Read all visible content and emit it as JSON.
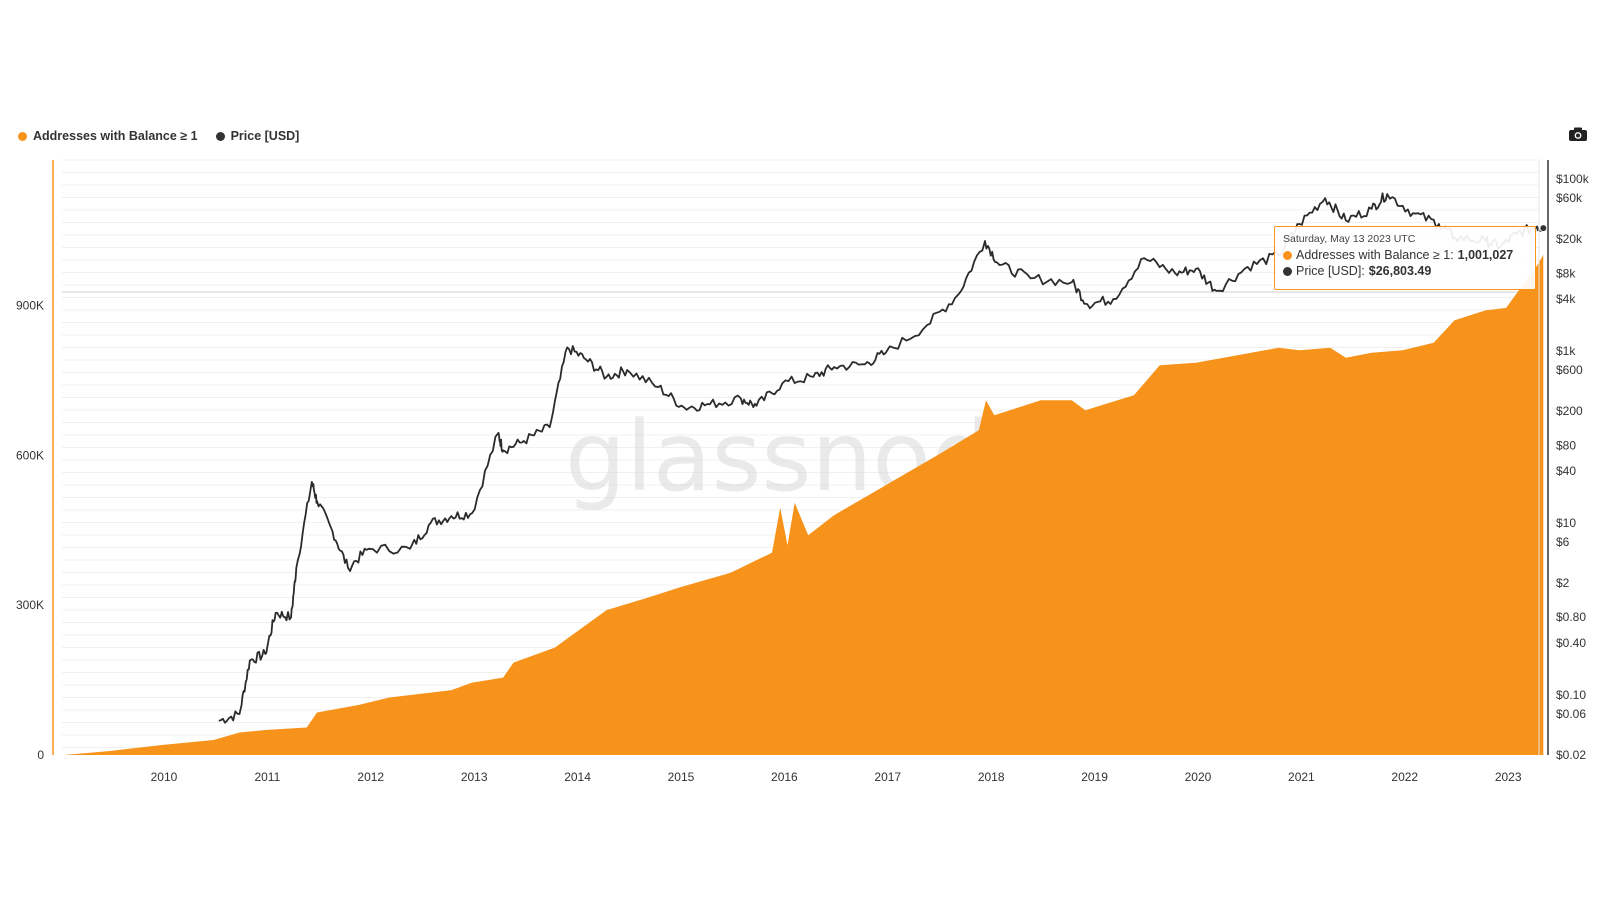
{
  "legend": {
    "items": [
      {
        "label": "Addresses with Balance ≥ 1",
        "color": "#f7931a"
      },
      {
        "label": "Price [USD]",
        "color": "#333333"
      }
    ]
  },
  "toolbar": {
    "camera_icon": "camera-icon"
  },
  "watermark": "glassnode",
  "tooltip": {
    "date": "Saturday, May 13 2023 UTC",
    "addresses_label": "Addresses with Balance ≥ 1:",
    "addresses_value": "1,001,027",
    "price_label": "Price [USD]:",
    "price_value": "$26,803.49"
  },
  "chart_data": {
    "type": "area",
    "x_ticks": [
      "2010",
      "2011",
      "2012",
      "2013",
      "2014",
      "2015",
      "2016",
      "2017",
      "2018",
      "2019",
      "2020",
      "2021",
      "2022",
      "2023"
    ],
    "y_left_ticks": [
      "0",
      "300K",
      "600K",
      "900K"
    ],
    "y_right_ticks": [
      "$0.02",
      "$0.06",
      "$0.10",
      "$0.40",
      "$0.80",
      "$2",
      "$6",
      "$10",
      "$40",
      "$80",
      "$200",
      "$600",
      "$1k",
      "$4k",
      "$8k",
      "$20k",
      "$60k",
      "$100k"
    ],
    "series": [
      {
        "name": "Addresses with Balance ≥ 1",
        "axis": "left",
        "color": "#f7931a",
        "points": [
          [
            2009.05,
            0
          ],
          [
            2009.5,
            8000
          ],
          [
            2010.0,
            20000
          ],
          [
            2010.5,
            30000
          ],
          [
            2010.75,
            45000
          ],
          [
            2011.0,
            50000
          ],
          [
            2011.4,
            55000
          ],
          [
            2011.5,
            85000
          ],
          [
            2011.9,
            100000
          ],
          [
            2012.2,
            115000
          ],
          [
            2012.6,
            125000
          ],
          [
            2012.8,
            130000
          ],
          [
            2013.0,
            145000
          ],
          [
            2013.3,
            155000
          ],
          [
            2013.4,
            185000
          ],
          [
            2013.8,
            215000
          ],
          [
            2014.0,
            245000
          ],
          [
            2014.3,
            290000
          ],
          [
            2014.7,
            315000
          ],
          [
            2015.0,
            335000
          ],
          [
            2015.5,
            365000
          ],
          [
            2015.9,
            405000
          ],
          [
            2015.98,
            495000
          ],
          [
            2016.05,
            420000
          ],
          [
            2016.12,
            505000
          ],
          [
            2016.25,
            440000
          ],
          [
            2016.5,
            480000
          ],
          [
            2017.0,
            540000
          ],
          [
            2017.5,
            600000
          ],
          [
            2017.9,
            650000
          ],
          [
            2017.97,
            710000
          ],
          [
            2018.05,
            680000
          ],
          [
            2018.5,
            710000
          ],
          [
            2018.8,
            710000
          ],
          [
            2018.93,
            690000
          ],
          [
            2019.4,
            720000
          ],
          [
            2019.65,
            780000
          ],
          [
            2020.0,
            785000
          ],
          [
            2020.4,
            800000
          ],
          [
            2020.8,
            815000
          ],
          [
            2021.0,
            810000
          ],
          [
            2021.3,
            815000
          ],
          [
            2021.45,
            795000
          ],
          [
            2021.7,
            805000
          ],
          [
            2022.0,
            810000
          ],
          [
            2022.3,
            825000
          ],
          [
            2022.5,
            870000
          ],
          [
            2022.8,
            890000
          ],
          [
            2023.0,
            895000
          ],
          [
            2023.3,
            980000
          ],
          [
            2023.36,
            1001027
          ]
        ]
      },
      {
        "name": "Price [USD]",
        "axis": "right",
        "color": "#333333",
        "points": [
          [
            2010.55,
            0.05
          ],
          [
            2010.75,
            0.06
          ],
          [
            2010.85,
            0.25
          ],
          [
            2011.0,
            0.3
          ],
          [
            2011.1,
            0.9
          ],
          [
            2011.25,
            0.8
          ],
          [
            2011.3,
            3
          ],
          [
            2011.45,
            30
          ],
          [
            2011.5,
            18
          ],
          [
            2011.65,
            8
          ],
          [
            2011.8,
            3
          ],
          [
            2012.0,
            5
          ],
          [
            2012.4,
            5
          ],
          [
            2012.6,
            10
          ],
          [
            2012.8,
            12
          ],
          [
            2013.0,
            13
          ],
          [
            2013.25,
            110
          ],
          [
            2013.3,
            70
          ],
          [
            2013.5,
            90
          ],
          [
            2013.75,
            130
          ],
          [
            2013.92,
            1100
          ],
          [
            2014.1,
            800
          ],
          [
            2014.3,
            500
          ],
          [
            2014.5,
            600
          ],
          [
            2014.8,
            380
          ],
          [
            2015.05,
            220
          ],
          [
            2015.3,
            240
          ],
          [
            2015.6,
            280
          ],
          [
            2015.75,
            230
          ],
          [
            2016.0,
            420
          ],
          [
            2016.3,
            500
          ],
          [
            2016.5,
            650
          ],
          [
            2016.8,
            700
          ],
          [
            2017.0,
            950
          ],
          [
            2017.4,
            2000
          ],
          [
            2017.7,
            4500
          ],
          [
            2017.96,
            19000
          ],
          [
            2018.1,
            10000
          ],
          [
            2018.4,
            7000
          ],
          [
            2018.8,
            6300
          ],
          [
            2018.95,
            3500
          ],
          [
            2019.2,
            4000
          ],
          [
            2019.5,
            12000
          ],
          [
            2019.8,
            8000
          ],
          [
            2020.0,
            9000
          ],
          [
            2020.2,
            5000
          ],
          [
            2020.5,
            9500
          ],
          [
            2020.8,
            13000
          ],
          [
            2021.0,
            30000
          ],
          [
            2021.25,
            60000
          ],
          [
            2021.45,
            33000
          ],
          [
            2021.7,
            45000
          ],
          [
            2021.85,
            67000
          ],
          [
            2022.1,
            40000
          ],
          [
            2022.35,
            30000
          ],
          [
            2022.5,
            21000
          ],
          [
            2022.8,
            19000
          ],
          [
            2022.95,
            16500
          ],
          [
            2023.1,
            23000
          ],
          [
            2023.3,
            28000
          ],
          [
            2023.36,
            26803.49
          ]
        ]
      }
    ]
  }
}
